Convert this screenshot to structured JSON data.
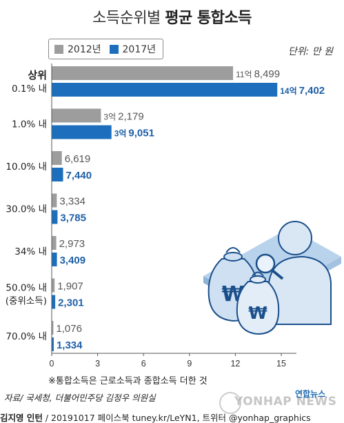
{
  "title": {
    "part1": "소득순위별",
    "part2": "평균 통합소득"
  },
  "unit": "단위: 만 원",
  "colors": {
    "y2012": "#9d9d9d",
    "y2017": "#1d6fbd",
    "label2012": "#555555",
    "label2017": "#1d5fa8"
  },
  "footnote": "※통합소득은 근로소득과 종합소득 더한 것",
  "source": "자료/ 국세청, 더불어민주당 김정우 의원실",
  "credit": {
    "author": "김지영 인턴",
    "rest": " / 20191017  페이스북 tuney.kr/LeYN1, 트위터 @yonhap_graphics"
  },
  "agency": "연합뉴스",
  "watermark": "YONHAP NEWS",
  "chart_data": {
    "type": "bar",
    "orientation": "horizontal",
    "title": "소득순위별 평균 통합소득",
    "unit": "만 원",
    "categories": [
      "상위 0.1% 내",
      "1.0% 내",
      "10.0% 내",
      "30.0% 내",
      "34% 내",
      "50.0% 내 (중위소득)",
      "70.0% 내"
    ],
    "category_lines": [
      [
        "상위",
        "0.1% 내"
      ],
      [
        "1.0% 내"
      ],
      [
        "10.0% 내"
      ],
      [
        "30.0% 내"
      ],
      [
        "34% 내"
      ],
      [
        "50.0% 내",
        "(중위소득)"
      ],
      [
        "70.0% 내"
      ]
    ],
    "series": [
      {
        "name": "2012년",
        "values": [
          118499,
          32179,
          6619,
          3334,
          2973,
          1907,
          1076
        ],
        "labels": [
          [
            "11억",
            "8,499"
          ],
          [
            "3억",
            "2,179"
          ],
          [
            "",
            "6,619"
          ],
          [
            "",
            "3,334"
          ],
          [
            "",
            "2,973"
          ],
          [
            "",
            "1,907"
          ],
          [
            "",
            "1,076"
          ]
        ]
      },
      {
        "name": "2017년",
        "values": [
          147402,
          39051,
          7440,
          3785,
          3409,
          2301,
          1334
        ],
        "labels": [
          [
            "14억",
            "7,402"
          ],
          [
            "3억",
            "9,051"
          ],
          [
            "",
            "7,440"
          ],
          [
            "",
            "3,785"
          ],
          [
            "",
            "3,409"
          ],
          [
            "",
            "2,301"
          ],
          [
            "",
            "1,334"
          ]
        ]
      }
    ],
    "xticks": [
      "0",
      "3",
      "6",
      "9",
      "12",
      "15"
    ],
    "xlim": [
      0,
      165000
    ],
    "grid": false,
    "legend": "top-left"
  }
}
